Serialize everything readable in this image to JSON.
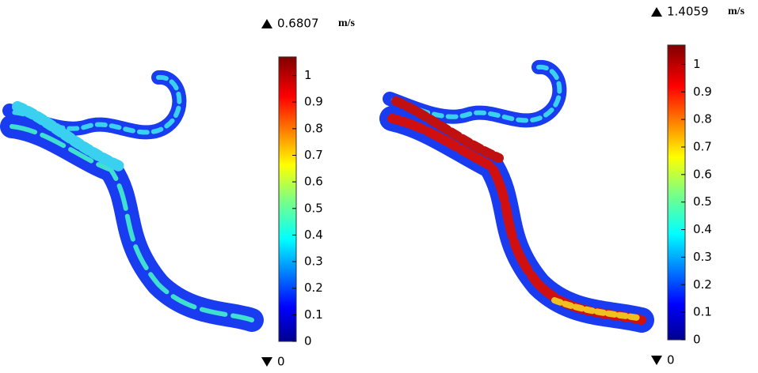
{
  "panels": [
    {
      "max_label": "0.6807",
      "min_label": "0",
      "unit": "m/s",
      "colorbar_range": [
        0,
        1.07
      ],
      "ticks": [
        0,
        0.1,
        0.2,
        0.3,
        0.4,
        0.5,
        0.6,
        0.7,
        0.8,
        0.9,
        1
      ]
    },
    {
      "max_label": "1.4059",
      "min_label": "0",
      "unit": "m/s",
      "colorbar_range": [
        0,
        1.07
      ],
      "ticks": [
        0,
        0.1,
        0.2,
        0.3,
        0.4,
        0.5,
        0.6,
        0.7,
        0.8,
        0.9,
        1
      ]
    }
  ]
}
